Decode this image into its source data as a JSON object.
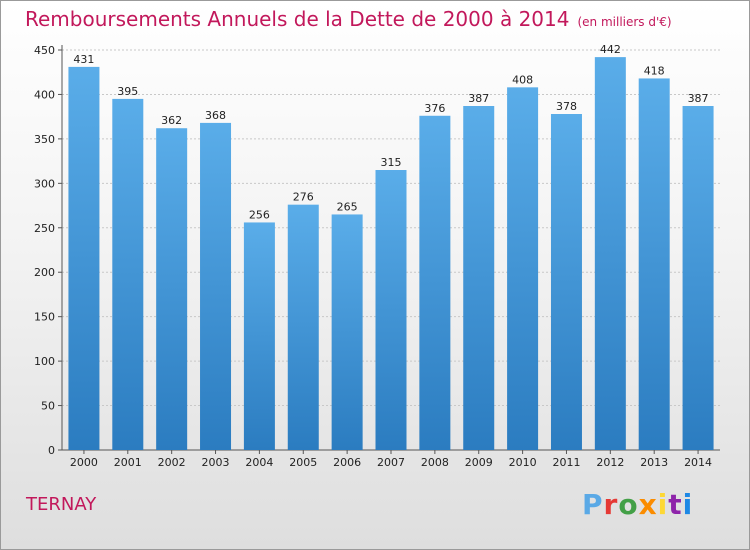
{
  "chart_data": {
    "type": "bar",
    "title": "Remboursements Annuels de la Dette de 2000 à 2014",
    "subtitle": "(en milliers d'€)",
    "categories": [
      "2000",
      "2001",
      "2002",
      "2003",
      "2004",
      "2005",
      "2006",
      "2007",
      "2008",
      "2009",
      "2010",
      "2011",
      "2012",
      "2013",
      "2014"
    ],
    "values": [
      431,
      395,
      362,
      368,
      256,
      276,
      265,
      315,
      376,
      387,
      408,
      378,
      442,
      418,
      387
    ],
    "yticks": [
      0,
      50,
      100,
      150,
      200,
      250,
      300,
      350,
      400,
      450
    ],
    "ylim": [
      0,
      450
    ],
    "xlabel": "",
    "ylabel": "",
    "grid": true,
    "bar_color": "#4f9fe0",
    "title_color": "#c2185b"
  },
  "footer": {
    "commune": "TERNAY",
    "logo": "Proxiti",
    "logo_colors": [
      "#5aa9e6",
      "#e53935",
      "#43a047",
      "#fb8c00",
      "#fdd835",
      "#8e24aa",
      "#1e88e5"
    ]
  }
}
